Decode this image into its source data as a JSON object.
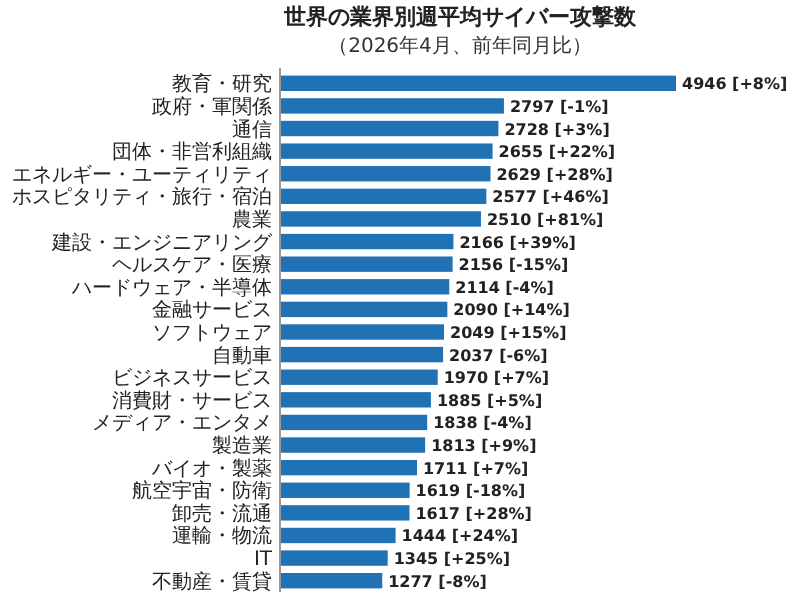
{
  "chart_data": {
    "type": "bar",
    "orientation": "horizontal",
    "title": "世界の業界別週平均サイバー攻撃数",
    "subtitle": "（2026年4月、前年同月比）",
    "categories": [
      "教育・研究",
      "政府・軍関係",
      "通信",
      "団体・非営利組織",
      "エネルギー・ユーティリティ",
      "ホスピタリティ・旅行・宿泊",
      "農業",
      "建設・エンジニアリング",
      "ヘルスケア・医療",
      "ハードウェア・半導体",
      "金融サービス",
      "ソフトウェア",
      "自動車",
      "ビジネスサービス",
      "消費財・サービス",
      "メディア・エンタメ",
      "製造業",
      "バイオ・製薬",
      "航空宇宙・防衛",
      "卸売・流通",
      "運輸・物流",
      "IT",
      "不動産・賃貸"
    ],
    "values": [
      4946,
      2797,
      2728,
      2655,
      2629,
      2577,
      2510,
      2166,
      2156,
      2114,
      2090,
      2049,
      2037,
      1970,
      1885,
      1838,
      1813,
      1711,
      1619,
      1617,
      1444,
      1345,
      1277
    ],
    "value_labels": [
      "4946 [+8%]",
      "2797 [-1%]",
      "2728 [+3%]",
      "2655 [+22%]",
      "2629 [+28%]",
      "2577 [+46%]",
      "2510 [+81%]",
      "2166 [+39%]",
      "2156 [-15%]",
      "2114 [-4%]",
      "2090 [+14%]",
      "2049 [+15%]",
      "2037 [-6%]",
      "1970 [+7%]",
      "1885 [+5%]",
      "1838 [-4%]",
      "1813 [+9%]",
      "1711 [+7%]",
      "1619 [-18%]",
      "1617 [+28%]",
      "1444 [+24%]",
      "1345 [+25%]",
      "1277 [-8%]"
    ],
    "color": "#2171b5"
  }
}
